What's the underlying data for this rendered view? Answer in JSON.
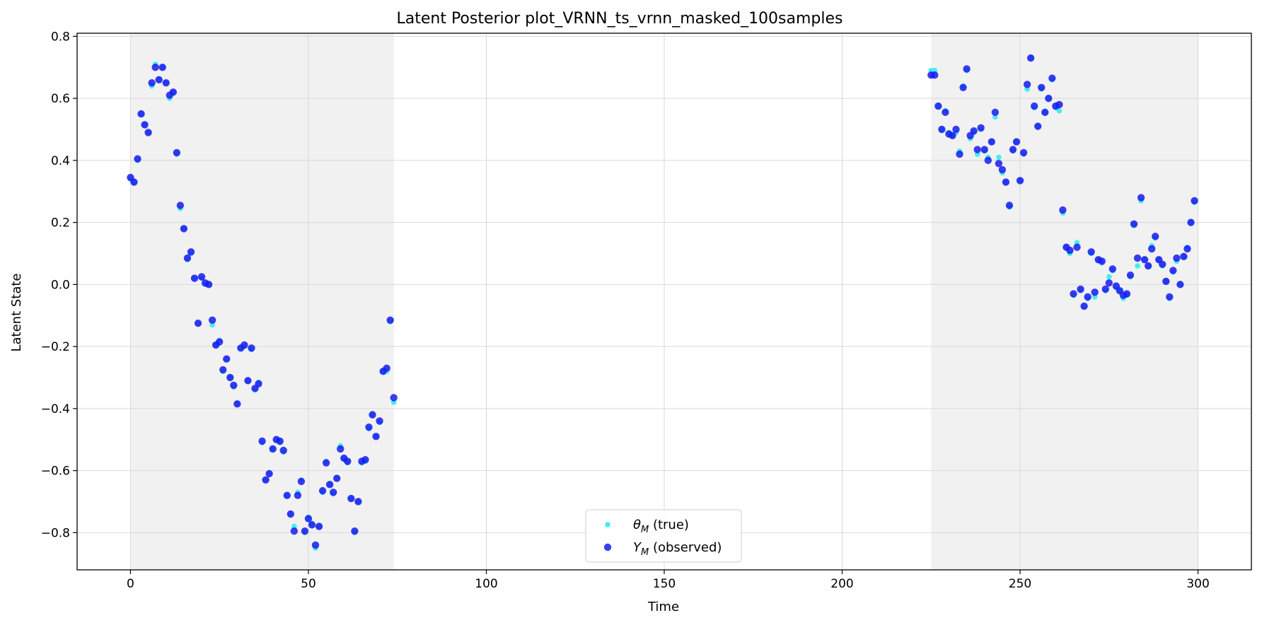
{
  "chart_data": {
    "type": "scatter",
    "title": "Latent Posterior plot_VRNN_ts_vrnn_masked_100samples",
    "xlabel": "Time",
    "ylabel": "Latent State",
    "xlim": [
      -15,
      315
    ],
    "ylim": [
      -0.92,
      0.81
    ],
    "xticks": [
      0,
      50,
      100,
      150,
      200,
      250,
      300
    ],
    "yticks": [
      -0.8,
      -0.6,
      -0.4,
      -0.2,
      0.0,
      0.2,
      0.4,
      0.6,
      0.8
    ],
    "xtick_labels": [
      "0",
      "50",
      "100",
      "150",
      "200",
      "250",
      "300"
    ],
    "ytick_labels": [
      "−0.8",
      "−0.6",
      "−0.4",
      "−0.2",
      "0.0",
      "0.2",
      "0.4",
      "0.6",
      "0.8"
    ],
    "grid": true,
    "legend_position": "bottom-center",
    "shaded_regions": [
      [
        0,
        74
      ],
      [
        225,
        300
      ]
    ],
    "colors": {
      "true": "#40f0f0",
      "observed": "#1a1aee",
      "shade": "#ebebeb",
      "grid": "#d9d9d9"
    },
    "series": [
      {
        "name": "θ_M (true)",
        "label_main": "θ",
        "label_sub": "M",
        "label_rest": " (true)",
        "x": [
          0,
          1,
          2,
          3,
          4,
          5,
          6,
          7,
          8,
          9,
          10,
          11,
          12,
          13,
          14,
          15,
          16,
          17,
          18,
          19,
          20,
          21,
          22,
          23,
          24,
          25,
          26,
          27,
          28,
          29,
          30,
          31,
          32,
          33,
          34,
          35,
          36,
          37,
          38,
          39,
          40,
          41,
          42,
          43,
          44,
          45,
          46,
          47,
          48,
          49,
          50,
          51,
          52,
          53,
          54,
          55,
          56,
          57,
          58,
          59,
          60,
          61,
          62,
          63,
          64,
          65,
          66,
          67,
          68,
          69,
          70,
          71,
          72,
          73,
          74,
          225,
          226,
          227,
          228,
          229,
          230,
          231,
          232,
          233,
          234,
          235,
          236,
          237,
          238,
          239,
          240,
          241,
          242,
          243,
          244,
          245,
          246,
          247,
          248,
          249,
          250,
          251,
          252,
          253,
          254,
          255,
          256,
          257,
          258,
          259,
          260,
          261,
          262,
          263,
          264,
          265,
          266,
          267,
          268,
          269,
          270,
          271,
          272,
          273,
          274,
          275,
          276,
          277,
          278,
          279,
          280,
          281,
          282,
          283,
          284,
          285,
          286,
          287,
          288,
          289,
          290,
          291,
          292,
          293,
          294,
          295,
          296,
          297,
          298,
          299
        ],
        "y": [
          0.34,
          0.33,
          0.4,
          0.55,
          0.515,
          0.49,
          0.64,
          0.71,
          0.66,
          0.7,
          0.65,
          0.6,
          0.62,
          0.42,
          0.245,
          0.18,
          0.08,
          0.1,
          0.02,
          -0.125,
          0.02,
          0.0,
          0.0,
          -0.13,
          -0.195,
          -0.18,
          -0.28,
          -0.24,
          -0.3,
          -0.33,
          -0.385,
          -0.205,
          -0.2,
          -0.31,
          -0.21,
          -0.34,
          -0.315,
          -0.51,
          -0.63,
          -0.61,
          -0.53,
          -0.5,
          -0.51,
          -0.54,
          -0.68,
          -0.74,
          -0.78,
          -0.67,
          -0.63,
          -0.8,
          -0.75,
          -0.77,
          -0.85,
          -0.78,
          -0.67,
          -0.57,
          -0.645,
          -0.675,
          -0.625,
          -0.52,
          -0.56,
          -0.575,
          -0.69,
          -0.8,
          -0.7,
          -0.575,
          -0.57,
          -0.465,
          -0.42,
          -0.49,
          -0.445,
          -0.28,
          -0.28,
          -0.12,
          -0.38,
          0.69,
          0.69,
          0.575,
          0.5,
          0.56,
          0.49,
          0.48,
          0.49,
          0.43,
          0.64,
          0.69,
          0.47,
          0.49,
          0.42,
          0.5,
          0.43,
          0.41,
          0.46,
          0.54,
          0.41,
          0.36,
          0.33,
          0.25,
          0.43,
          0.46,
          0.335,
          0.42,
          0.63,
          0.73,
          0.57,
          0.51,
          0.63,
          0.555,
          0.6,
          0.66,
          0.57,
          0.56,
          0.23,
          0.12,
          0.1,
          -0.035,
          0.135,
          -0.02,
          -0.07,
          -0.045,
          0.1,
          -0.04,
          0.08,
          0.07,
          -0.02,
          0.025,
          0.045,
          -0.01,
          -0.02,
          -0.045,
          -0.035,
          0.025,
          0.19,
          0.06,
          0.27,
          0.08,
          0.06,
          0.125,
          0.15,
          0.08,
          0.06,
          0.01,
          -0.045,
          0.04,
          0.075,
          0.0,
          0.09,
          0.12,
          0.2,
          0.265
        ]
      },
      {
        "name": "Y_M (observed)",
        "label_main": "Y",
        "label_sub": "M",
        "label_rest": " (observed)",
        "x": [
          0,
          1,
          2,
          3,
          4,
          5,
          6,
          7,
          8,
          9,
          10,
          11,
          12,
          13,
          14,
          15,
          16,
          17,
          18,
          19,
          20,
          21,
          22,
          23,
          24,
          25,
          26,
          27,
          28,
          29,
          30,
          31,
          32,
          33,
          34,
          35,
          36,
          37,
          38,
          39,
          40,
          41,
          42,
          43,
          44,
          45,
          46,
          47,
          48,
          49,
          50,
          51,
          52,
          53,
          54,
          55,
          56,
          57,
          58,
          59,
          60,
          61,
          62,
          63,
          64,
          65,
          66,
          67,
          68,
          69,
          70,
          71,
          72,
          73,
          74,
          225,
          226,
          227,
          228,
          229,
          230,
          231,
          232,
          233,
          234,
          235,
          236,
          237,
          238,
          239,
          240,
          241,
          242,
          243,
          244,
          245,
          246,
          247,
          248,
          249,
          250,
          251,
          252,
          253,
          254,
          255,
          256,
          257,
          258,
          259,
          260,
          261,
          262,
          263,
          264,
          265,
          266,
          267,
          268,
          269,
          270,
          271,
          272,
          273,
          274,
          275,
          276,
          277,
          278,
          279,
          280,
          281,
          282,
          283,
          284,
          285,
          286,
          287,
          288,
          289,
          290,
          291,
          292,
          293,
          294,
          295,
          296,
          297,
          298,
          299
        ],
        "y": [
          0.345,
          0.33,
          0.405,
          0.55,
          0.515,
          0.49,
          0.65,
          0.7,
          0.66,
          0.7,
          0.65,
          0.61,
          0.62,
          0.425,
          0.255,
          0.18,
          0.085,
          0.105,
          0.02,
          -0.125,
          0.025,
          0.005,
          0.0,
          -0.115,
          -0.195,
          -0.185,
          -0.275,
          -0.24,
          -0.3,
          -0.325,
          -0.385,
          -0.205,
          -0.195,
          -0.31,
          -0.205,
          -0.335,
          -0.32,
          -0.505,
          -0.63,
          -0.61,
          -0.53,
          -0.5,
          -0.505,
          -0.535,
          -0.68,
          -0.74,
          -0.795,
          -0.68,
          -0.635,
          -0.795,
          -0.755,
          -0.775,
          -0.84,
          -0.78,
          -0.665,
          -0.575,
          -0.645,
          -0.67,
          -0.625,
          -0.53,
          -0.56,
          -0.57,
          -0.69,
          -0.795,
          -0.7,
          -0.57,
          -0.565,
          -0.46,
          -0.42,
          -0.49,
          -0.44,
          -0.28,
          -0.27,
          -0.115,
          -0.365,
          0.675,
          0.675,
          0.575,
          0.5,
          0.555,
          0.485,
          0.48,
          0.5,
          0.42,
          0.635,
          0.695,
          0.48,
          0.495,
          0.435,
          0.505,
          0.435,
          0.4,
          0.46,
          0.555,
          0.39,
          0.37,
          0.33,
          0.255,
          0.435,
          0.46,
          0.335,
          0.425,
          0.645,
          0.73,
          0.575,
          0.51,
          0.635,
          0.555,
          0.6,
          0.665,
          0.575,
          0.58,
          0.24,
          0.12,
          0.11,
          -0.03,
          0.12,
          -0.015,
          -0.07,
          -0.04,
          0.105,
          -0.025,
          0.08,
          0.075,
          -0.015,
          0.005,
          0.05,
          -0.005,
          -0.02,
          -0.035,
          -0.03,
          0.03,
          0.195,
          0.085,
          0.28,
          0.08,
          0.06,
          0.115,
          0.155,
          0.08,
          0.065,
          0.01,
          -0.04,
          0.045,
          0.085,
          0.0,
          0.09,
          0.115,
          0.2,
          0.27
        ]
      }
    ]
  }
}
